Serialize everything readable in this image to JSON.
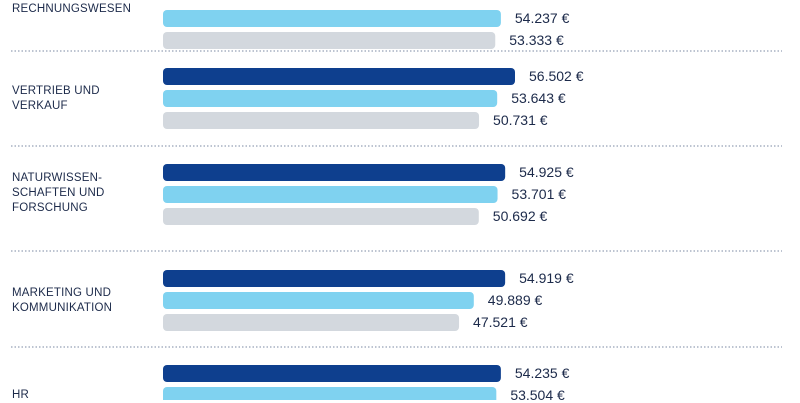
{
  "chart_data": {
    "type": "bar",
    "orientation": "horizontal",
    "unit": "€",
    "grid": false,
    "separators": "dotted",
    "colors": [
      "#0e3f8e",
      "#7fd2f0",
      "#d3d8de"
    ],
    "categories": [
      {
        "label": "RECHNUNGSWESEN",
        "values": [
          null,
          54237,
          53333
        ]
      },
      {
        "label": "VERTRIEB UND VERKAUF",
        "values": [
          56502,
          53643,
          50731
        ]
      },
      {
        "label": "NATURWISSEN-SCHAFTEN UND FORSCHUNG",
        "values": [
          54925,
          53701,
          50692
        ]
      },
      {
        "label": "MARKETING UND KOMMUNIKATION",
        "values": [
          54919,
          49889,
          47521
        ]
      },
      {
        "label": "HR",
        "values": [
          54235,
          53504,
          null
        ]
      }
    ],
    "value_labels": [
      [
        "",
        "54.237 €",
        "53.333 €"
      ],
      [
        "56.502 €",
        "53.643 €",
        "50.731 €"
      ],
      [
        "54.925 €",
        "53.701 €",
        "50.692 €"
      ],
      [
        "54.919 €",
        "49.889 €",
        "47.521 €"
      ],
      [
        "54.235 €",
        "53.504 €",
        ""
      ]
    ]
  }
}
